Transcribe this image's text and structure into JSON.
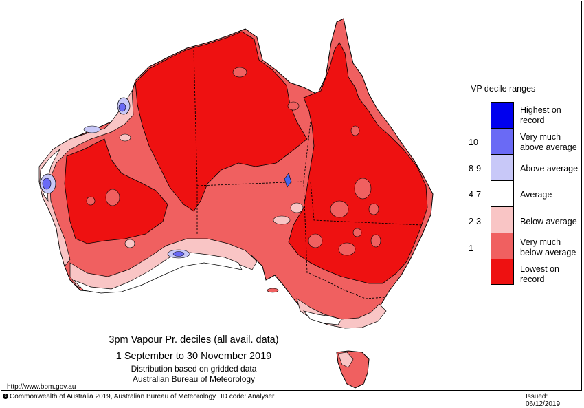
{
  "legend": {
    "title": "VP decile ranges",
    "items": [
      {
        "label": "Highest on record",
        "color": "#0000ee",
        "decile": ""
      },
      {
        "label": "Very much above average",
        "color": "#6a6af5",
        "decile": "10"
      },
      {
        "label": "Above average",
        "color": "#c8c8f8",
        "decile": "8-9"
      },
      {
        "label": "Average",
        "color": "#ffffff",
        "decile": "4-7"
      },
      {
        "label": "Below average",
        "color": "#f9c5c5",
        "decile": "2-3"
      },
      {
        "label": "Very much below average",
        "color": "#f06060",
        "decile": "1"
      },
      {
        "label": "Lowest on record",
        "color": "#ee1111",
        "decile": ""
      }
    ]
  },
  "caption": {
    "line1": "3pm Vapour Pr. deciles (all avail. data)",
    "line2": "1 September to 30 November 2019",
    "line3": "Distribution based on gridded data",
    "line4": "Australian Bureau of Meteorology"
  },
  "url": "http://www.bom.gov.au",
  "footer": {
    "copyright": "Commonwealth of Australia 2019, Australian Bureau of Meteorology",
    "id_code": "ID code: Analyser",
    "issued": "Issued: 06/12/2019"
  },
  "colors": {
    "lowest": "#ee1111",
    "very_much_below": "#f06060",
    "below": "#f9c5c5",
    "average": "#ffffff",
    "above": "#c8c8f8",
    "very_much_above": "#6a6af5",
    "highest": "#0000ee"
  }
}
